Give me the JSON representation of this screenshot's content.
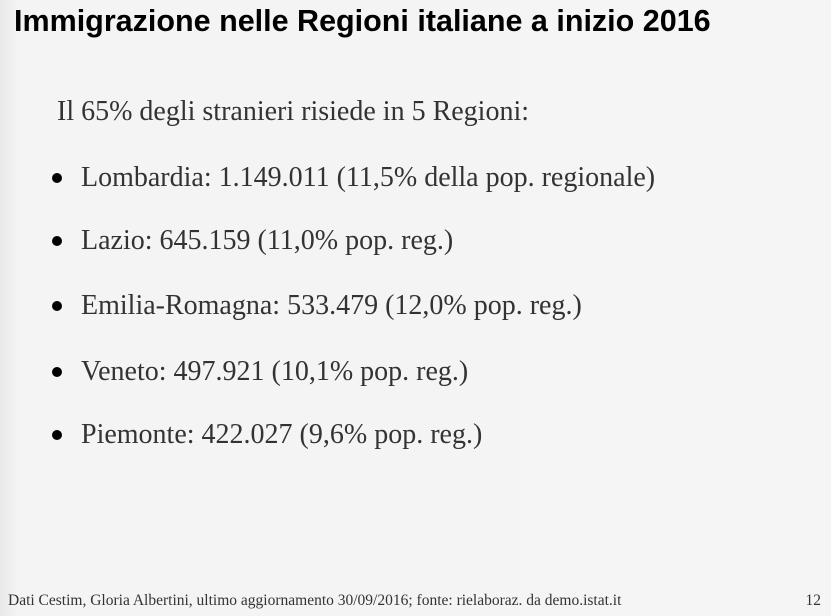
{
  "header": {
    "title": "Immigrazione nelle Regioni italiane a inizio 2016"
  },
  "body": {
    "intro": "Il 65% degli stranieri risiede in 5 Regioni:",
    "bullets": [
      "Lombardia: 1.149.011 (11,5% della pop. regionale)",
      "Lazio: 645.159 (11,0% pop. reg.)",
      "Emilia-Romagna: 533.479 (12,0% pop. reg.)",
      "Veneto: 497.921 (10,1% pop. reg.)",
      "Piemonte: 422.027 (9,6% pop. reg.)"
    ]
  },
  "footer": {
    "source": "Dati Cestim, Gloria Albertini, ultimo aggiornamento 30/09/2016; fonte: rielaboraz. da demo.istat.it",
    "page_number": "12"
  }
}
